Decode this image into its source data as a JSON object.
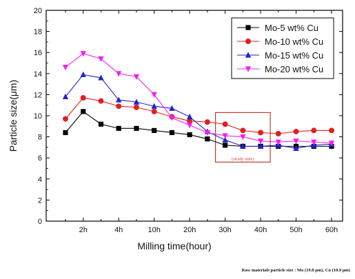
{
  "chart_data": {
    "type": "line",
    "x": [
      "",
      "2h",
      "",
      "4h",
      "",
      "10h",
      "",
      "20h",
      "",
      "30h",
      "",
      "40h",
      "",
      "50h",
      "",
      "60h"
    ],
    "x_tick_labels": [
      "2h",
      "4h",
      "10h",
      "20h",
      "30h",
      "40h",
      "50h",
      "60h"
    ],
    "xlabel": "Milling time(hour)",
    "ylabel": "Particle size(μm)",
    "ylim": [
      0,
      20
    ],
    "y_ticks": [
      0,
      2,
      4,
      6,
      8,
      10,
      12,
      14,
      16,
      18,
      20
    ],
    "grid": false,
    "legend_position": "top-right",
    "series": [
      {
        "name": "Mo-5 wt% Cu",
        "color": "#000000",
        "marker": "square",
        "values": [
          8.4,
          10.4,
          9.2,
          8.8,
          8.8,
          8.6,
          8.4,
          8.2,
          7.8,
          7.2,
          7.1,
          7.1,
          7.1,
          7.1,
          7.1,
          7.1
        ]
      },
      {
        "name": "Mo-10 wt% Cu",
        "color": "#e02020",
        "marker": "circle",
        "values": [
          9.7,
          11.7,
          11.4,
          10.9,
          10.8,
          10.4,
          9.9,
          9.5,
          9.4,
          9.2,
          8.6,
          8.4,
          8.3,
          8.5,
          8.6,
          8.6
        ]
      },
      {
        "name": "Mo-15 wt% Cu",
        "color": "#2222cc",
        "marker": "triangle-up",
        "values": [
          11.8,
          13.9,
          13.6,
          11.5,
          11.3,
          10.9,
          10.7,
          9.9,
          8.5,
          7.7,
          7.1,
          7.1,
          7.2,
          6.9,
          7.2,
          7.3
        ]
      },
      {
        "name": "Mo-20 wt% Cu",
        "color": "#ee22ee",
        "marker": "triangle-down",
        "values": [
          14.6,
          15.9,
          15.4,
          14.0,
          13.7,
          12.0,
          9.8,
          9.1,
          8.4,
          8.1,
          8.0,
          7.6,
          7.5,
          7.6,
          7.5,
          7.4
        ]
      }
    ],
    "annotation": {
      "text": "(steady-state)",
      "color": "#c0392b"
    },
    "footnote": "Raw materials particle size : Mo (19.8 μm), Cu (10.9 μm)"
  }
}
